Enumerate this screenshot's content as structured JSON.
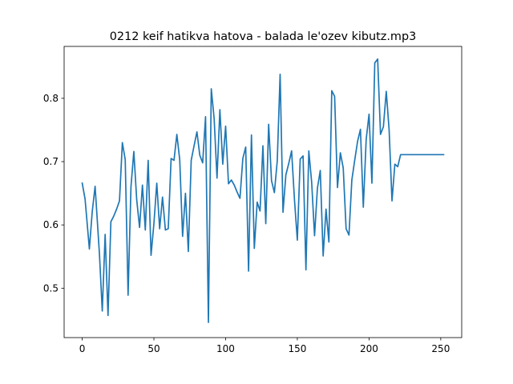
{
  "chart_data": {
    "type": "line",
    "title": "0212 keif hatikva hatova - balada le'ozev kibutz.mp3",
    "xlabel": "",
    "ylabel": "",
    "xlim": [
      -12.6,
      264.6
    ],
    "ylim": [
      0.422,
      0.882
    ],
    "xticks": [
      0,
      50,
      100,
      150,
      200,
      250
    ],
    "yticks": [
      0.5,
      0.6,
      0.7,
      0.8
    ],
    "xtick_labels": [
      "0",
      "50",
      "100",
      "150",
      "200",
      "250"
    ],
    "ytick_labels": [
      "0.5",
      "0.6",
      "0.7",
      "0.8"
    ],
    "grid": false,
    "legend": "none",
    "series_color": "#1f77b4",
    "series": [
      {
        "x": [
          0,
          2,
          5,
          7,
          9,
          12,
          14,
          16,
          18,
          20,
          22,
          24,
          26,
          28,
          30,
          32,
          34,
          36,
          38,
          40,
          42,
          44,
          46,
          48,
          50,
          52,
          54,
          56,
          58,
          60,
          62,
          64,
          66,
          68,
          70,
          72,
          74,
          76,
          78,
          80,
          82,
          84,
          86,
          88,
          90,
          92,
          94,
          96,
          98,
          100,
          102,
          104,
          106,
          108,
          110,
          112,
          114,
          116,
          118,
          120,
          122,
          124,
          126,
          128,
          130,
          132,
          134,
          136,
          138,
          140,
          142,
          144,
          146,
          148,
          150,
          152,
          154,
          156,
          158,
          160,
          162,
          164,
          166,
          168,
          170,
          172,
          174,
          176,
          178,
          180,
          182,
          184,
          186,
          188,
          190,
          192,
          194,
          196,
          198,
          200,
          202,
          204,
          206,
          208,
          210,
          212,
          214,
          216,
          218,
          220,
          222,
          224,
          226,
          228,
          230,
          232,
          234,
          236,
          238,
          240,
          242,
          244,
          246,
          248,
          250,
          252
        ],
        "y": [
          0.666,
          0.641,
          0.562,
          0.621,
          0.661,
          0.555,
          0.464,
          0.585,
          0.457,
          0.605,
          0.614,
          0.625,
          0.638,
          0.73,
          0.703,
          0.489,
          0.66,
          0.716,
          0.64,
          0.596,
          0.663,
          0.592,
          0.702,
          0.552,
          0.602,
          0.666,
          0.594,
          0.644,
          0.592,
          0.594,
          0.705,
          0.702,
          0.743,
          0.703,
          0.582,
          0.65,
          0.558,
          0.702,
          0.725,
          0.747,
          0.71,
          0.698,
          0.771,
          0.446,
          0.815,
          0.768,
          0.674,
          0.782,
          0.696,
          0.756,
          0.665,
          0.671,
          0.663,
          0.652,
          0.642,
          0.705,
          0.723,
          0.527,
          0.742,
          0.563,
          0.636,
          0.622,
          0.725,
          0.602,
          0.759,
          0.67,
          0.651,
          0.701,
          0.838,
          0.62,
          0.679,
          0.697,
          0.717,
          0.64,
          0.576,
          0.704,
          0.709,
          0.529,
          0.717,
          0.667,
          0.583,
          0.658,
          0.686,
          0.551,
          0.625,
          0.573,
          0.812,
          0.803,
          0.659,
          0.714,
          0.69,
          0.594,
          0.584,
          0.671,
          0.702,
          0.732,
          0.751,
          0.628,
          0.735,
          0.775,
          0.666,
          0.856,
          0.862,
          0.743,
          0.755,
          0.811,
          0.75,
          0.638,
          0.696,
          0.692,
          0.711,
          0.711,
          0.711,
          0.711,
          0.711,
          0.711,
          0.711,
          0.711,
          0.711,
          0.711,
          0.711,
          0.711,
          0.711,
          0.711,
          0.711,
          0.711
        ]
      }
    ]
  }
}
